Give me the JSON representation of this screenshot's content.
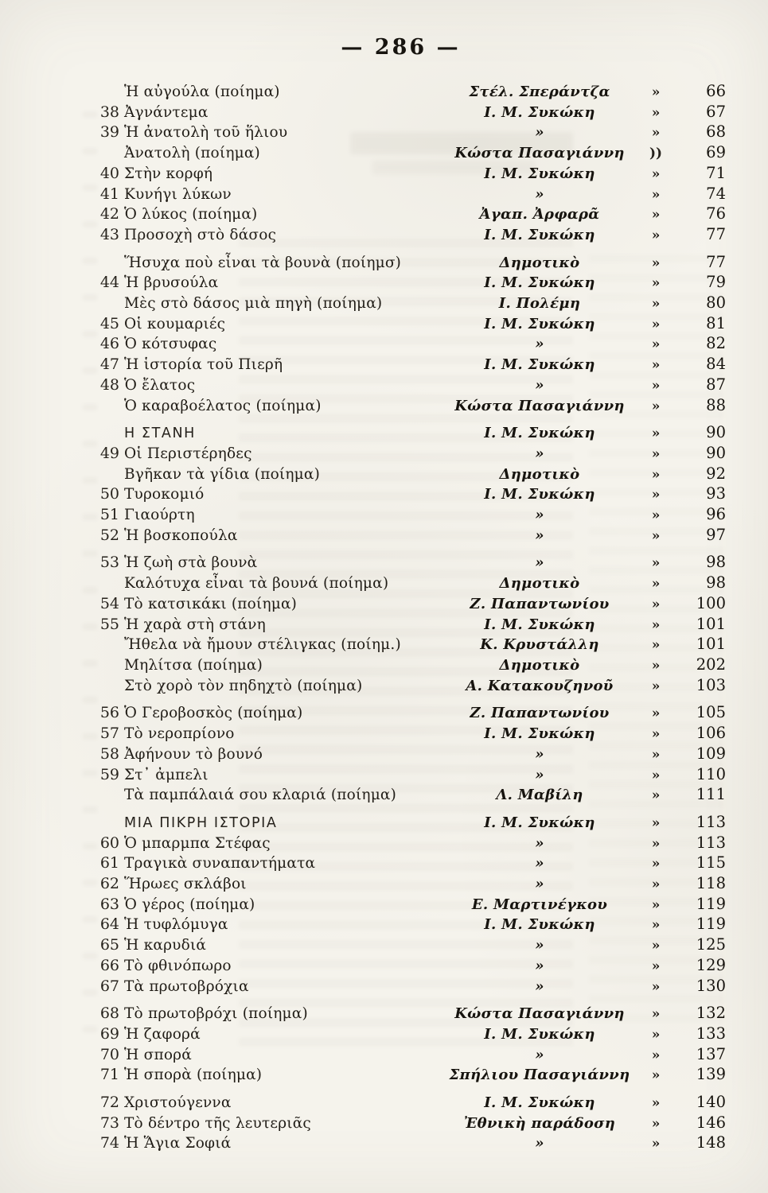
{
  "page": {
    "number_display": "— 286 —"
  },
  "colors": {
    "paper": "#f5f3ec",
    "ink": "#221f1b"
  },
  "toc": {
    "rows": [
      {
        "num": "",
        "title": "Ἡ αὐγούλα (ποίημα)",
        "author": "Στέλ. Σπεράντζα",
        "mark": "»",
        "page": "66",
        "section": false,
        "space_before": false
      },
      {
        "num": "38",
        "title": "Ἀγνάντεμα",
        "author": "Ι. Μ. Συκώκη",
        "mark": "»",
        "page": "67",
        "section": false,
        "space_before": false
      },
      {
        "num": "39",
        "title": "Ἡ ἀνατολὴ τοῦ ἥλιου",
        "author": "»",
        "mark": "»",
        "page": "68",
        "section": false,
        "space_before": false
      },
      {
        "num": "",
        "title": "Ἀνατολὴ (ποίημα)",
        "author": "Κώστα Πασαγιάννη",
        "mark": "))",
        "page": "69",
        "section": false,
        "space_before": false
      },
      {
        "num": "40",
        "title": "Στὴν κορφή",
        "author": "Ι. Μ. Συκώκη",
        "mark": "»",
        "page": "71",
        "section": false,
        "space_before": false
      },
      {
        "num": "41",
        "title": "Κυνήγι λύκων",
        "author": "»",
        "mark": "»",
        "page": "74",
        "section": false,
        "space_before": false
      },
      {
        "num": "42",
        "title": "Ὁ λύκος (ποίημα)",
        "author": "Ἀγαπ. Ἀρφαρᾶ",
        "mark": "»",
        "page": "76",
        "section": false,
        "space_before": false
      },
      {
        "num": "43",
        "title": "Προσοχὴ στὸ δάσος",
        "author": "Ι. Μ. Συκώκη",
        "mark": "»",
        "page": "77",
        "section": false,
        "space_before": false
      },
      {
        "num": "",
        "title": "Ἥσυχα ποὺ εἶναι τὰ βουνὰ (ποίημσ)",
        "author": "Δημοτικὸ",
        "mark": "»",
        "page": "77",
        "section": false,
        "space_before": true
      },
      {
        "num": "44",
        "title": "Ἡ βρυσούλα",
        "author": "Ι. Μ. Συκώκη",
        "mark": "»",
        "page": "79",
        "section": false,
        "space_before": false
      },
      {
        "num": "",
        "title": "Μὲς στὸ δάσος μιὰ πηγὴ (ποίημα)",
        "author": "Ι. Πολέμη",
        "mark": "»",
        "page": "80",
        "section": false,
        "space_before": false
      },
      {
        "num": "45",
        "title": "Οἱ κουμαριές",
        "author": "Ι. Μ. Συκώκη",
        "mark": "»",
        "page": "81",
        "section": false,
        "space_before": false
      },
      {
        "num": "46",
        "title": "Ὁ κότσυφας",
        "author": "»",
        "mark": "»",
        "page": "82",
        "section": false,
        "space_before": false
      },
      {
        "num": "47",
        "title": "Ἡ ἱστορία τοῦ Πιερῆ",
        "author": "Ι. Μ. Συκώκη",
        "mark": "»",
        "page": "84",
        "section": false,
        "space_before": false
      },
      {
        "num": "48",
        "title": "Ὁ ἔλατος",
        "author": "»",
        "mark": "»",
        "page": "87",
        "section": false,
        "space_before": false
      },
      {
        "num": "",
        "title": "Ὁ καραβοέλατος (ποίημα)",
        "author": "Κώστα Πασαγιάννη",
        "mark": "»",
        "page": "88",
        "section": false,
        "space_before": false
      },
      {
        "num": "",
        "title": "Η ΣΤΑΝΗ",
        "author": "Ι. Μ. Συκώκη",
        "mark": "»",
        "page": "90",
        "section": true,
        "space_before": true
      },
      {
        "num": "49",
        "title": "Οἱ Περιστέρηδες",
        "author": "»",
        "mark": "»",
        "page": "90",
        "section": false,
        "space_before": false
      },
      {
        "num": "",
        "title": "Βγῆκαν τὰ γίδια (ποίημα)",
        "author": "Δημοτικὸ",
        "mark": "»",
        "page": "92",
        "section": false,
        "space_before": false
      },
      {
        "num": "50",
        "title": "Τυροκομιό",
        "author": "Ι. Μ. Συκώκη",
        "mark": "»",
        "page": "93",
        "section": false,
        "space_before": false
      },
      {
        "num": "51",
        "title": "Γιαούρτη",
        "author": "»",
        "mark": "»",
        "page": "96",
        "section": false,
        "space_before": false
      },
      {
        "num": "52",
        "title": "Ἡ βοσκοπούλα",
        "author": "»",
        "mark": "»",
        "page": "97",
        "section": false,
        "space_before": false
      },
      {
        "num": "53",
        "title": "Ἡ ζωὴ στὰ βουνὰ",
        "author": "»",
        "mark": "»",
        "page": "98",
        "section": false,
        "space_before": true
      },
      {
        "num": "",
        "title": "Καλότυχα εἶναι τὰ βουνά (ποίημα)",
        "author": "Δημοτικὸ",
        "mark": "»",
        "page": "98",
        "section": false,
        "space_before": false
      },
      {
        "num": "54",
        "title": "Τὸ κατσικάκι (ποίημα)",
        "author": "Ζ. Παπαντωνίου",
        "mark": "»",
        "page": "100",
        "section": false,
        "space_before": false
      },
      {
        "num": "55",
        "title": "Ἡ χαρὰ στὴ στάνη",
        "author": "Ι. Μ. Συκώκη",
        "mark": "»",
        "page": "101",
        "section": false,
        "space_before": false
      },
      {
        "num": "",
        "title": "Ἤθελα νὰ ἤμουν στέλιγκας (ποίημ.)",
        "author": "Κ. Κρυστάλλη",
        "mark": "»",
        "page": "101",
        "section": false,
        "space_before": false
      },
      {
        "num": "",
        "title": "Μηλίτσα (ποίημα)",
        "author": "Δημοτικὸ",
        "mark": "»",
        "page": "202",
        "section": false,
        "space_before": false
      },
      {
        "num": "",
        "title": "Στὸ χορὸ τὸν πηδηχτὸ (ποίημα)",
        "author": "Α. Κατακουζηνοῦ",
        "mark": "»",
        "page": "103",
        "section": false,
        "space_before": false
      },
      {
        "num": "56",
        "title": "Ὁ Γεροβοσκὸς (ποίημα)",
        "author": "Ζ. Παπαντωνίου",
        "mark": "»",
        "page": "105",
        "section": false,
        "space_before": true
      },
      {
        "num": "57",
        "title": "Τὸ νεροπρίονο",
        "author": "Ι. Μ. Συκώκη",
        "mark": "»",
        "page": "106",
        "section": false,
        "space_before": false
      },
      {
        "num": "58",
        "title": "Ἀφήνουν τὸ βουνό",
        "author": "»",
        "mark": "»",
        "page": "109",
        "section": false,
        "space_before": false
      },
      {
        "num": "59",
        "title": "Στ᾽ ἀμπελι",
        "author": "»",
        "mark": "»",
        "page": "110",
        "section": false,
        "space_before": false
      },
      {
        "num": "",
        "title": "Τὰ παμπάλαιά σου κλαριά (ποίημα)",
        "author": "Λ. Μαβίλη",
        "mark": "»",
        "page": "111",
        "section": false,
        "space_before": false
      },
      {
        "num": "",
        "title": "ΜΙΑ ΠΙΚΡΗ ΙΣΤΟΡΙΑ",
        "author": "Ι. Μ. Συκώκη",
        "mark": "»",
        "page": "113",
        "section": true,
        "space_before": true
      },
      {
        "num": "60",
        "title": "Ὁ μπαρμπα Στέφας",
        "author": "»",
        "mark": "»",
        "page": "113",
        "section": false,
        "space_before": false
      },
      {
        "num": "61",
        "title": "Τραγικὰ συναπαντήματα",
        "author": "»",
        "mark": "»",
        "page": "115",
        "section": false,
        "space_before": false
      },
      {
        "num": "62",
        "title": "Ἥρωες σκλάβοι",
        "author": "»",
        "mark": "»",
        "page": "118",
        "section": false,
        "space_before": false
      },
      {
        "num": "63",
        "title": "Ὁ γέρος (ποίημα)",
        "author": "Ε. Μαρτινέγκου",
        "mark": "»",
        "page": "119",
        "section": false,
        "space_before": false
      },
      {
        "num": "64",
        "title": "Ἡ τυφλόμυγα",
        "author": "Ι. Μ. Συκώκη",
        "mark": "»",
        "page": "119",
        "section": false,
        "space_before": false
      },
      {
        "num": "65",
        "title": "Ἡ καρυδιά",
        "author": "»",
        "mark": "»",
        "page": "125",
        "section": false,
        "space_before": false
      },
      {
        "num": "66",
        "title": "Τὸ φθινόπωρο",
        "author": "»",
        "mark": "»",
        "page": "129",
        "section": false,
        "space_before": false
      },
      {
        "num": "67",
        "title": "Τὰ πρωτοβρόχια",
        "author": "»",
        "mark": "»",
        "page": "130",
        "section": false,
        "space_before": false
      },
      {
        "num": "68",
        "title": "Τὸ πρωτοβρόχι (ποίημα)",
        "author": "Κώστα Πασαγιάννη",
        "mark": "»",
        "page": "132",
        "section": false,
        "space_before": true
      },
      {
        "num": "69",
        "title": "Ἡ ζαφορά",
        "author": "Ι. Μ. Συκώκη",
        "mark": "»",
        "page": "133",
        "section": false,
        "space_before": false
      },
      {
        "num": "70",
        "title": "Ἡ σπορά",
        "author": "»",
        "mark": "»",
        "page": "137",
        "section": false,
        "space_before": false
      },
      {
        "num": "71",
        "title": "Ἡ σπορὰ (ποίημα)",
        "author": "Σπήλιου Πασαγιάννη",
        "mark": "»",
        "page": "139",
        "section": false,
        "space_before": false
      },
      {
        "num": "72",
        "title": "Χριστούγεννα",
        "author": "Ι. Μ. Συκώκη",
        "mark": "»",
        "page": "140",
        "section": false,
        "space_before": true
      },
      {
        "num": "73",
        "title": "Τὸ δέντρο τῆς λευτεριᾶς",
        "author": "Ἐθνικὴ παράδοση",
        "mark": "»",
        "page": "146",
        "section": false,
        "space_before": false
      },
      {
        "num": "74",
        "title": "Ἡ Ἅγια Σοφιά",
        "author": "»",
        "mark": "»",
        "page": "148",
        "section": false,
        "space_before": false
      }
    ]
  }
}
